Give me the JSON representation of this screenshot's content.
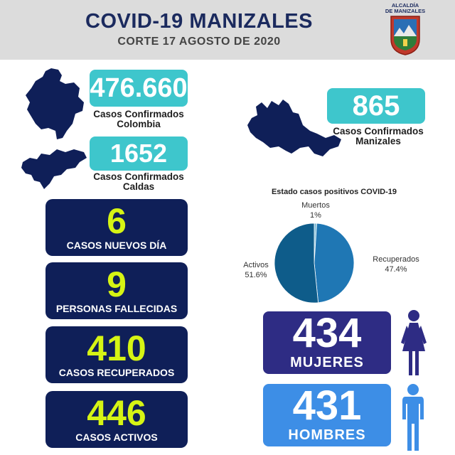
{
  "header": {
    "title": "COVID-19 MANIZALES",
    "subtitle": "CORTE 17  AGOSTO DE 2020",
    "logo_line1": "ALCALDÍA",
    "logo_line2": "DE MANIZALES"
  },
  "confirmed": {
    "colombia": {
      "value": "476.660",
      "label_line1": "Casos Confirmados",
      "label_line2": "Colombia"
    },
    "caldas": {
      "value": "1652",
      "label_line1": "Casos Confirmados",
      "label_line2": "Caldas"
    },
    "manizales": {
      "value": "865",
      "label_line1": "Casos Confirmados",
      "label_line2": "Manizales"
    }
  },
  "stats": [
    {
      "value": "6",
      "label": "CASOS NUEVOS DÍA"
    },
    {
      "value": "9",
      "label": "PERSONAS FALLECIDAS"
    },
    {
      "value": "410",
      "label": "CASOS RECUPERADOS"
    },
    {
      "value": "446",
      "label": "CASOS ACTIVOS"
    }
  ],
  "chart_data": {
    "type": "pie",
    "title": "Estado casos positivos COVID-19",
    "slices": [
      {
        "name": "Muertos",
        "value": 1,
        "label": "1%",
        "color": "#7fbcd6"
      },
      {
        "name": "Recuperados",
        "value": 47.4,
        "label": "47.4%",
        "color": "#1f77b4"
      },
      {
        "name": "Activos",
        "value": 51.6,
        "label": "51.6%",
        "color": "#0e5c8a"
      }
    ]
  },
  "gender": {
    "women": {
      "value": "434",
      "label": "MUJERES",
      "color": "#2e2c84"
    },
    "men": {
      "value": "431",
      "label": "HOMBRES",
      "color": "#3d8ee6"
    }
  },
  "colors": {
    "navy": "#0f1f58",
    "teal": "#3ec6cc",
    "lime": "#d6f414",
    "map": "#0f1f58"
  }
}
